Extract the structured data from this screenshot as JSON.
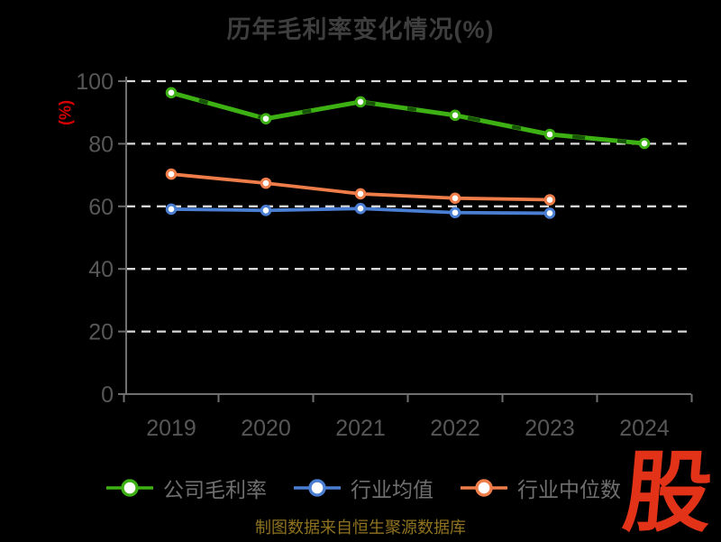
{
  "chart_data": {
    "type": "line",
    "title": "历年毛利率变化情况(%)",
    "ylabel": "(%)",
    "categories": [
      "2019",
      "2020",
      "2021",
      "2022",
      "2023",
      "2024"
    ],
    "ylim": [
      0,
      100
    ],
    "yticks": [
      0,
      20,
      40,
      60,
      80,
      100
    ],
    "grid": "horizontal-dashed",
    "legend_position": "bottom",
    "series": [
      {
        "key": "company-gross-margin",
        "name": "公司毛利率",
        "color": "#3db014",
        "values": [
          96.3,
          88.0,
          93.4,
          89.1,
          83.0,
          80.1
        ]
      },
      {
        "key": "industry-mean",
        "name": "行业均值",
        "color": "#4a7ed2",
        "values": [
          59.1,
          58.7,
          59.3,
          58.0,
          57.8,
          null
        ]
      },
      {
        "key": "industry-median",
        "name": "行业中位数",
        "color": "#ef7d4a",
        "values": [
          70.3,
          67.4,
          64.0,
          62.6,
          62.1,
          null
        ]
      }
    ]
  },
  "footer": {
    "caption": "制图数据来自恒生聚源数据库",
    "logo_text": "股"
  },
  "colors": {
    "background": "#000000",
    "title": "#3e3e3e",
    "axis": "#6f6f6f",
    "tick_label": "#575757",
    "gridline": "#d8d8d8",
    "ylabel": "#d40000",
    "caption": "#8f7320",
    "logo": "#e23318",
    "legend_label": "#6f6f6f",
    "marker_fill": "#ffffff"
  }
}
